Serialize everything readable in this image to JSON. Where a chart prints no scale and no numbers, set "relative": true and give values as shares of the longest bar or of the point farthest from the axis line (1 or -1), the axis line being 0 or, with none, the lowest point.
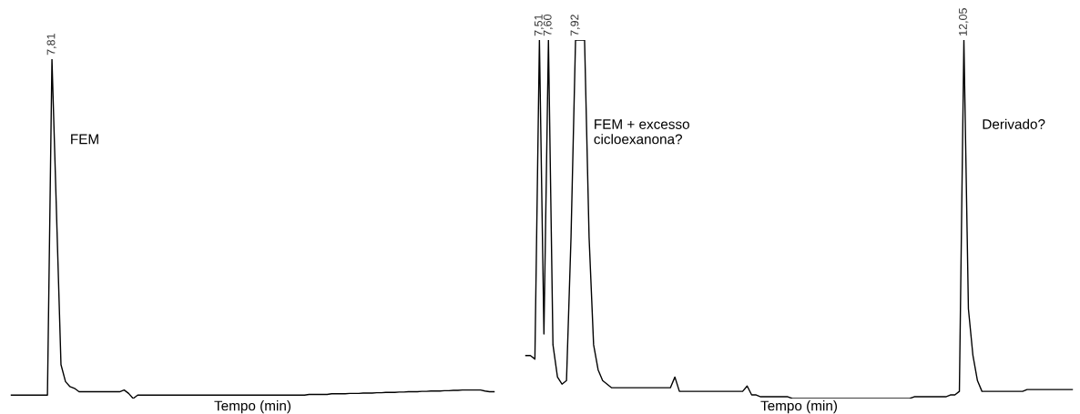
{
  "chart_data": [
    {
      "type": "line",
      "relative": true,
      "xlabel": "Tempo (min)",
      "categories": [
        null,
        null,
        null,
        null,
        null,
        null,
        null,
        null,
        null,
        null,
        null,
        null,
        null,
        null,
        null,
        null,
        null,
        null,
        null,
        null,
        null,
        null,
        null,
        null,
        null,
        null,
        null,
        null,
        null,
        null,
        null,
        null,
        null,
        null,
        null,
        null,
        null,
        null,
        null,
        null,
        null,
        null,
        null,
        null,
        null,
        null,
        null,
        null,
        null,
        null,
        null,
        null,
        null,
        null,
        null,
        null,
        null,
        null,
        null,
        null,
        null,
        null,
        null,
        null,
        null,
        null,
        null,
        null,
        null,
        null,
        null,
        null,
        null,
        null,
        null,
        null,
        null,
        null,
        null,
        null,
        null,
        null,
        null,
        null,
        null,
        null,
        null,
        null,
        null,
        null,
        null,
        null,
        null,
        null,
        null,
        null,
        null,
        null,
        null,
        null,
        null,
        null,
        null,
        null,
        null,
        null,
        null,
        null
      ],
      "series": [
        {
          "color": "#000000",
          "values": [
            0.01,
            0.01,
            0.01,
            0.01,
            0.01,
            0.01,
            0.01,
            0.01,
            0.01,
            1.0,
            0.55,
            0.1,
            0.05,
            0.035,
            0.03,
            0.02,
            0.02,
            0.02,
            0.02,
            0.02,
            0.02,
            0.02,
            0.02,
            0.02,
            0.02,
            0.025,
            0.015,
            0.0,
            0.01,
            0.01,
            0.01,
            0.01,
            0.01,
            0.01,
            0.01,
            0.01,
            0.01,
            0.01,
            0.01,
            0.01,
            0.01,
            0.01,
            0.01,
            0.01,
            0.01,
            0.01,
            0.01,
            0.01,
            0.01,
            0.01,
            0.01,
            0.01,
            0.01,
            0.01,
            0.01,
            0.01,
            0.01,
            0.01,
            0.01,
            0.01,
            0.01,
            0.01,
            0.01,
            0.01,
            0.01,
            0.01,
            0.012,
            0.012,
            0.012,
            0.012,
            0.012,
            0.014,
            0.014,
            0.014,
            0.014,
            0.015,
            0.015,
            0.015,
            0.016,
            0.016,
            0.016,
            0.017,
            0.017,
            0.018,
            0.018,
            0.018,
            0.019,
            0.019,
            0.02,
            0.02,
            0.02,
            0.021,
            0.021,
            0.022,
            0.022,
            0.022,
            0.023,
            0.023,
            0.024,
            0.024,
            0.025,
            0.025,
            0.025,
            0.025,
            0.025,
            0.022,
            0.02,
            0.02
          ]
        }
      ],
      "annotations": [
        {
          "text": "7,81",
          "y": 1.0
        },
        "FEM"
      ]
    },
    {
      "type": "line",
      "relative": true,
      "xlabel": "Tempo (min)",
      "categories": [
        null,
        null,
        null,
        null,
        null,
        null,
        null,
        null,
        null,
        null,
        null,
        null,
        null,
        null,
        null,
        null,
        null,
        null,
        null,
        null,
        null,
        null,
        null,
        null,
        null,
        null,
        null,
        null,
        null,
        null,
        null,
        null,
        null,
        null,
        null,
        null,
        null,
        null,
        null,
        null,
        null,
        null,
        null,
        null,
        null,
        null,
        null,
        null,
        null,
        null,
        null,
        null,
        null,
        null,
        null,
        null,
        null,
        null,
        null,
        null,
        null,
        null,
        null,
        null,
        null,
        null,
        null,
        null,
        null,
        null,
        null,
        null,
        null,
        null,
        null,
        null,
        null,
        null,
        null,
        null,
        null,
        null,
        null,
        null,
        null,
        null,
        null,
        null,
        null,
        null,
        null,
        null,
        null,
        null,
        null,
        null,
        null,
        null,
        null,
        null,
        null,
        null,
        null,
        null,
        null,
        null,
        null,
        null,
        null,
        null,
        null,
        null,
        null,
        null,
        null,
        null,
        null,
        null,
        null,
        null,
        null,
        null
      ],
      "series": [
        {
          "color": "#000000",
          "values": [
            0.12,
            0.12,
            0.11,
            1.0,
            0.18,
            1.0,
            0.15,
            0.06,
            0.04,
            0.05,
            0.45,
            1.0,
            1.0,
            1.0,
            0.45,
            0.15,
            0.08,
            0.05,
            0.04,
            0.03,
            0.03,
            0.03,
            0.03,
            0.03,
            0.03,
            0.03,
            0.03,
            0.03,
            0.03,
            0.03,
            0.03,
            0.03,
            0.03,
            0.06,
            0.02,
            0.02,
            0.02,
            0.02,
            0.02,
            0.02,
            0.02,
            0.02,
            0.02,
            0.02,
            0.02,
            0.02,
            0.02,
            0.02,
            0.02,
            0.035,
            0.01,
            0.01,
            0.005,
            0.005,
            0.005,
            0.005,
            0.005,
            0.005,
            0.005,
            0.0,
            0.0,
            0.0,
            0.0,
            0.0,
            0.0,
            0.0,
            0.0,
            0.0,
            0.0,
            0.0,
            0.0,
            0.0,
            0.0,
            0.0,
            0.0,
            0.0,
            0.0,
            0.0,
            0.0,
            0.0,
            0.0,
            0.0,
            0.0,
            0.0,
            0.0,
            0.0,
            0.005,
            0.005,
            0.005,
            0.005,
            0.005,
            0.005,
            0.005,
            0.005,
            0.01,
            0.01,
            0.02,
            1.0,
            0.25,
            0.12,
            0.05,
            0.02,
            0.02,
            0.02,
            0.02,
            0.02,
            0.02,
            0.02,
            0.02,
            0.02,
            0.02,
            0.025,
            0.025,
            0.025,
            0.025,
            0.025,
            0.025,
            0.025,
            0.025,
            0.025,
            0.025,
            0.025
          ]
        }
      ],
      "annotations": [
        {
          "text": "7,51",
          "y": 1.0
        },
        {
          "text": "7,60",
          "y": 1.0
        },
        {
          "text": "7,92",
          "y": 1.0
        },
        "FEM + excesso\ncicloexanona?",
        {
          "text": "12,05",
          "y": 1.0
        },
        "Derivado?"
      ]
    }
  ]
}
